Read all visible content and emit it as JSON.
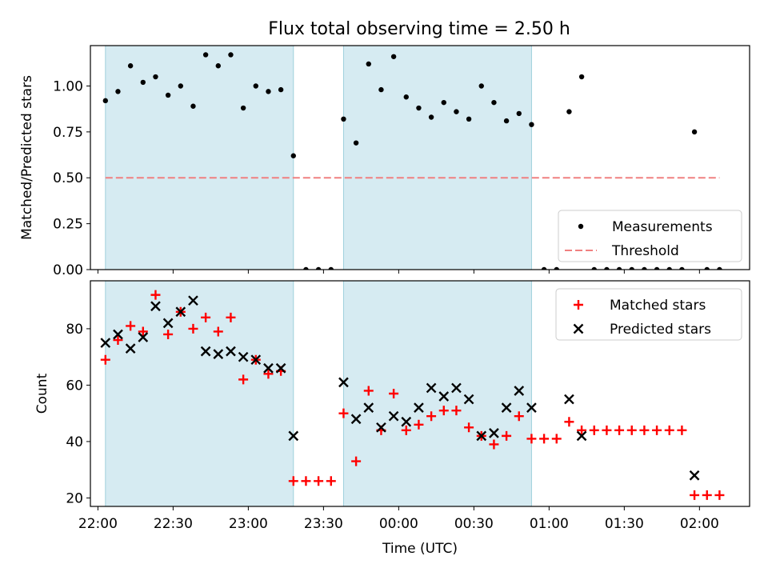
{
  "title": "Flux total observing time = 2.50 h",
  "chart_data": [
    {
      "type": "scatter",
      "panel": "top",
      "title": "Flux total observing time = 2.50 h",
      "xlabel": "",
      "ylabel": "Matched/Predicted stars",
      "ylim": [
        0,
        1.22
      ],
      "yticks": [
        0.0,
        0.25,
        0.5,
        0.75,
        1.0
      ],
      "ytick_labels": [
        "0.00",
        "0.25",
        "0.50",
        "0.75",
        "1.00"
      ],
      "shaded_intervals": [
        [
          "22:03",
          "23:18"
        ],
        [
          "23:38",
          "00:53"
        ]
      ],
      "legend": [
        "Measurements",
        "Threshold"
      ],
      "legend_position": "lower right",
      "series": [
        {
          "name": "Measurements",
          "marker": "dot",
          "color": "#000000",
          "points": [
            [
              "22:03",
              0.92
            ],
            [
              "22:08",
              0.97
            ],
            [
              "22:13",
              1.11
            ],
            [
              "22:18",
              1.02
            ],
            [
              "22:23",
              1.05
            ],
            [
              "22:28",
              0.95
            ],
            [
              "22:33",
              1.0
            ],
            [
              "22:38",
              0.89
            ],
            [
              "22:43",
              1.17
            ],
            [
              "22:48",
              1.11
            ],
            [
              "22:53",
              1.17
            ],
            [
              "22:58",
              0.88
            ],
            [
              "23:03",
              1.0
            ],
            [
              "23:08",
              0.97
            ],
            [
              "23:13",
              0.98
            ],
            [
              "23:18",
              0.62
            ],
            [
              "23:23",
              0.0
            ],
            [
              "23:28",
              0.0
            ],
            [
              "23:33",
              0.0
            ],
            [
              "23:38",
              0.82
            ],
            [
              "23:43",
              0.69
            ],
            [
              "23:48",
              1.12
            ],
            [
              "23:53",
              0.98
            ],
            [
              "23:58",
              1.16
            ],
            [
              "00:03",
              0.94
            ],
            [
              "00:08",
              0.88
            ],
            [
              "00:13",
              0.83
            ],
            [
              "00:18",
              0.91
            ],
            [
              "00:23",
              0.86
            ],
            [
              "00:28",
              0.82
            ],
            [
              "00:33",
              1.0
            ],
            [
              "00:38",
              0.91
            ],
            [
              "00:43",
              0.81
            ],
            [
              "00:48",
              0.85
            ],
            [
              "00:53",
              0.79
            ],
            [
              "00:58",
              0.0
            ],
            [
              "01:03",
              0.0
            ],
            [
              "01:08",
              0.86
            ],
            [
              "01:13",
              1.05
            ],
            [
              "01:18",
              0.0
            ],
            [
              "01:23",
              0.0
            ],
            [
              "01:28",
              0.0
            ],
            [
              "01:33",
              0.0
            ],
            [
              "01:38",
              0.0
            ],
            [
              "01:43",
              0.0
            ],
            [
              "01:48",
              0.0
            ],
            [
              "01:53",
              0.0
            ],
            [
              "01:58",
              0.75
            ],
            [
              "02:03",
              0.0
            ],
            [
              "02:08",
              0.0
            ]
          ]
        },
        {
          "name": "Threshold",
          "style": "dashed",
          "color": "#f08080",
          "points": [
            [
              "22:03",
              0.5
            ],
            [
              "02:08",
              0.5
            ]
          ]
        }
      ]
    },
    {
      "type": "scatter",
      "panel": "bottom",
      "xlabel": "Time (UTC)",
      "ylabel": "Count",
      "ylim": [
        17,
        97
      ],
      "yticks": [
        20,
        40,
        60,
        80
      ],
      "ytick_labels": [
        "20",
        "40",
        "60",
        "80"
      ],
      "xticks": [
        "22:00",
        "22:30",
        "23:00",
        "23:30",
        "00:00",
        "00:30",
        "01:00",
        "01:30",
        "02:00"
      ],
      "shaded_intervals": [
        [
          "22:03",
          "23:18"
        ],
        [
          "23:38",
          "00:53"
        ]
      ],
      "legend": [
        "Matched stars",
        "Predicted stars"
      ],
      "legend_position": "upper right",
      "series": [
        {
          "name": "Matched stars",
          "marker": "plus",
          "color": "#ff0000",
          "points": [
            [
              "22:03",
              69
            ],
            [
              "22:08",
              76
            ],
            [
              "22:13",
              81
            ],
            [
              "22:18",
              79
            ],
            [
              "22:23",
              92
            ],
            [
              "22:28",
              78
            ],
            [
              "22:33",
              86
            ],
            [
              "22:38",
              80
            ],
            [
              "22:43",
              84
            ],
            [
              "22:48",
              79
            ],
            [
              "22:53",
              84
            ],
            [
              "22:58",
              62
            ],
            [
              "23:03",
              69
            ],
            [
              "23:08",
              64
            ],
            [
              "23:13",
              65
            ],
            [
              "23:18",
              26
            ],
            [
              "23:23",
              26
            ],
            [
              "23:28",
              26
            ],
            [
              "23:33",
              26
            ],
            [
              "23:38",
              50
            ],
            [
              "23:43",
              33
            ],
            [
              "23:48",
              58
            ],
            [
              "23:53",
              44
            ],
            [
              "23:58",
              57
            ],
            [
              "00:03",
              44
            ],
            [
              "00:08",
              46
            ],
            [
              "00:13",
              49
            ],
            [
              "00:18",
              51
            ],
            [
              "00:23",
              51
            ],
            [
              "00:28",
              45
            ],
            [
              "00:33",
              42
            ],
            [
              "00:38",
              39
            ],
            [
              "00:43",
              42
            ],
            [
              "00:48",
              49
            ],
            [
              "00:53",
              41
            ],
            [
              "00:58",
              41
            ],
            [
              "01:03",
              41
            ],
            [
              "01:08",
              47
            ],
            [
              "01:13",
              44
            ],
            [
              "01:18",
              44
            ],
            [
              "01:23",
              44
            ],
            [
              "01:28",
              44
            ],
            [
              "01:33",
              44
            ],
            [
              "01:38",
              44
            ],
            [
              "01:43",
              44
            ],
            [
              "01:48",
              44
            ],
            [
              "01:53",
              44
            ],
            [
              "01:58",
              21
            ],
            [
              "02:03",
              21
            ],
            [
              "02:08",
              21
            ]
          ]
        },
        {
          "name": "Predicted stars",
          "marker": "x",
          "color": "#000000",
          "points": [
            [
              "22:03",
              75
            ],
            [
              "22:08",
              78
            ],
            [
              "22:13",
              73
            ],
            [
              "22:18",
              77
            ],
            [
              "22:23",
              88
            ],
            [
              "22:28",
              82
            ],
            [
              "22:33",
              86
            ],
            [
              "22:38",
              90
            ],
            [
              "22:43",
              72
            ],
            [
              "22:48",
              71
            ],
            [
              "22:53",
              72
            ],
            [
              "22:58",
              70
            ],
            [
              "23:03",
              69
            ],
            [
              "23:08",
              66
            ],
            [
              "23:13",
              66
            ],
            [
              "23:18",
              42
            ],
            [
              "23:38",
              61
            ],
            [
              "23:43",
              48
            ],
            [
              "23:48",
              52
            ],
            [
              "23:53",
              45
            ],
            [
              "23:58",
              49
            ],
            [
              "00:03",
              47
            ],
            [
              "00:08",
              52
            ],
            [
              "00:13",
              59
            ],
            [
              "00:18",
              56
            ],
            [
              "00:23",
              59
            ],
            [
              "00:28",
              55
            ],
            [
              "00:33",
              42
            ],
            [
              "00:38",
              43
            ],
            [
              "00:43",
              52
            ],
            [
              "00:48",
              58
            ],
            [
              "00:53",
              52
            ],
            [
              "01:08",
              55
            ],
            [
              "01:13",
              42
            ],
            [
              "01:58",
              28
            ]
          ]
        }
      ]
    }
  ]
}
